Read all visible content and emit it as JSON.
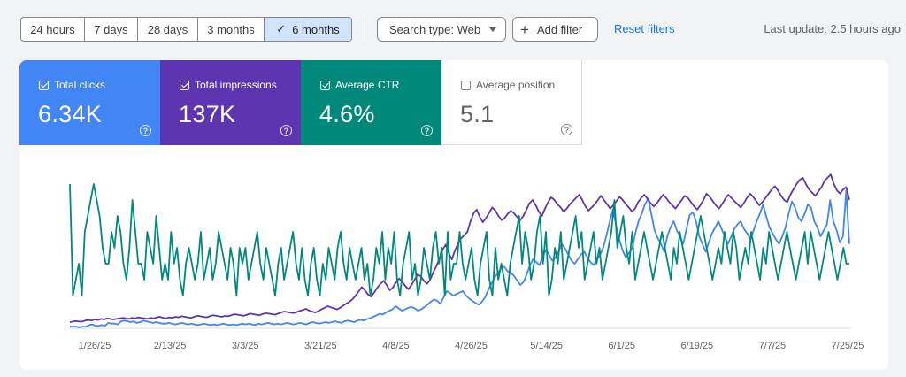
{
  "toolbar": {
    "ranges": [
      {
        "label": "24 hours",
        "active": false
      },
      {
        "label": "7 days",
        "active": false
      },
      {
        "label": "28 days",
        "active": false
      },
      {
        "label": "3 months",
        "active": false
      },
      {
        "label": "6 months",
        "active": true
      }
    ],
    "search_type_label": "Search type: Web",
    "add_filter_label": "Add filter",
    "reset_filters_label": "Reset filters",
    "last_update": "Last update: 2.5 hours ago"
  },
  "metrics": [
    {
      "label": "Total clicks",
      "value": "6.34K",
      "checked": true,
      "color": "#4285f4"
    },
    {
      "label": "Total impressions",
      "value": "137K",
      "checked": true,
      "color": "#5e35b1"
    },
    {
      "label": "Average CTR",
      "value": "4.6%",
      "checked": true,
      "color": "#00897b"
    },
    {
      "label": "Average position",
      "value": "5.1",
      "checked": false,
      "color": "#e8710a"
    }
  ],
  "help_glyph": "?",
  "chart_data": {
    "type": "line",
    "x_start": "2025-01-26",
    "x_end": "2025-07-26",
    "x_tick_labels": [
      "1/26/25",
      "2/13/25",
      "3/3/25",
      "3/21/25",
      "4/8/25",
      "4/26/25",
      "5/14/25",
      "6/1/25",
      "6/19/25",
      "7/7/25",
      "7/25/25"
    ],
    "grid": false,
    "y_axis_labels_shown": false,
    "series": [
      {
        "name": "Total clicks",
        "color": "#4285f4",
        "values": [
          1,
          1,
          1,
          0,
          1,
          1,
          3,
          4,
          2,
          2,
          3,
          2,
          6,
          5,
          5,
          4,
          8,
          9,
          8,
          7,
          8,
          6,
          7,
          9,
          8,
          7,
          6,
          7,
          6,
          5,
          5,
          6,
          5,
          4,
          5,
          6,
          5,
          4,
          5,
          4,
          3,
          4,
          5,
          4,
          3,
          4,
          3,
          4,
          5,
          4,
          3,
          4,
          3,
          4,
          5,
          4,
          5,
          4,
          3,
          5,
          4,
          5,
          6,
          5,
          4,
          5,
          4,
          5,
          6,
          5,
          4,
          5,
          6,
          5,
          4,
          6,
          7,
          6,
          5,
          6,
          7,
          6,
          7,
          8,
          7,
          6,
          8,
          9,
          8,
          7,
          9,
          10,
          9,
          11,
          12,
          14,
          16,
          18,
          17,
          20,
          22,
          24,
          28,
          25,
          22,
          24,
          26,
          27,
          25,
          22,
          24,
          27,
          30,
          34,
          37,
          35,
          31,
          40,
          48,
          45,
          42,
          44,
          46,
          48,
          42,
          38,
          35,
          32,
          30,
          34,
          40,
          50,
          58,
          66,
          72,
          78,
          80,
          74,
          72,
          68,
          62,
          56,
          60,
          70,
          82,
          90,
          86,
          82,
          94,
          102,
          96,
          88,
          92,
          100,
          110,
          104,
          96,
          88,
          84,
          90,
          96,
          100,
          92,
          86,
          82,
          90,
          96,
          106,
          122,
          140,
          156,
          134,
          116,
          102,
          92,
          98,
          104,
          124,
          140,
          150,
          162,
          170,
          150,
          128,
          118,
          110,
          100,
          120,
          132,
          140,
          128,
          120,
          110,
          130,
          148,
          152,
          140,
          120,
          110,
          100,
          112,
          124,
          132,
          140,
          130,
          120,
          110,
          120,
          130,
          136,
          140,
          130,
          124,
          116,
          128,
          140,
          150,
          162,
          146,
          132,
          124,
          116,
          110,
          120,
          132,
          150,
          166,
          158,
          145,
          140,
          150,
          162,
          158,
          140,
          132,
          120,
          128,
          136,
          168,
          140,
          128,
          112,
          120,
          180,
          110
        ],
        "ylim": [
          0,
          210
        ]
      },
      {
        "name": "Total impressions",
        "color": "#5e35b1",
        "values": [
          100,
          101,
          102,
          101,
          101,
          103,
          104,
          103,
          105,
          104,
          106,
          105,
          107,
          106,
          105,
          106,
          107,
          108,
          107,
          106,
          108,
          107,
          109,
          108,
          107,
          106,
          108,
          107,
          109,
          110,
          108,
          107,
          109,
          108,
          110,
          109,
          111,
          110,
          109,
          108,
          110,
          112,
          111,
          110,
          109,
          111,
          113,
          112,
          111,
          110,
          112,
          111,
          113,
          115,
          114,
          113,
          112,
          114,
          116,
          115,
          114,
          113,
          115,
          117,
          116,
          115,
          114,
          116,
          118,
          120,
          119,
          118,
          117,
          119,
          121,
          123,
          125,
          122,
          120,
          118,
          121,
          124,
          127,
          130,
          128,
          126,
          124,
          127,
          131,
          135,
          138,
          143,
          150,
          158,
          166,
          160,
          152,
          148,
          156,
          165,
          172,
          178,
          170,
          160,
          165,
          175,
          182,
          176,
          168,
          162,
          170,
          180,
          190,
          186,
          178,
          172,
          180,
          194,
          205,
          220,
          236,
          246,
          230,
          218,
          235,
          248,
          258,
          264,
          270,
          290,
          305,
          312,
          298,
          288,
          296,
          306,
          316,
          310,
          300,
          292,
          296,
          304,
          310,
          305,
          298,
          292,
          300,
          312,
          324,
          330,
          320,
          308,
          300,
          314,
          326,
          335,
          330,
          322,
          316,
          308,
          314,
          322,
          328,
          334,
          340,
          330,
          318,
          310,
          316,
          322,
          330,
          338,
          330,
          322,
          314,
          320,
          328,
          336,
          330,
          322,
          316,
          308,
          314,
          326,
          334,
          340,
          332,
          324,
          318,
          324,
          332,
          340,
          334,
          326,
          320,
          314,
          322,
          330,
          338,
          334,
          326,
          318,
          312,
          320,
          330,
          342,
          336,
          328,
          320,
          314,
          322,
          332,
          340,
          334,
          328,
          322,
          316,
          324,
          334,
          342,
          336,
          328,
          320,
          326,
          334,
          342,
          350,
          356,
          348,
          338,
          330,
          326,
          340,
          350,
          360,
          368,
          372,
          360,
          350,
          344,
          338,
          346,
          354,
          366,
          372,
          378,
          360,
          348,
          342,
          350,
          354,
          330
        ],
        "ylim": [
          90,
          390
        ]
      },
      {
        "name": "Average CTR",
        "color": "#00897b",
        "values": [
          9,
          2,
          3,
          4,
          2,
          6,
          7,
          8,
          9,
          8,
          7,
          5,
          4,
          4,
          6,
          5,
          7,
          6,
          4,
          3,
          5,
          8,
          6,
          4,
          4,
          3,
          6,
          5,
          4,
          7,
          5,
          3,
          4,
          3,
          6,
          4,
          5,
          3,
          2,
          4,
          5,
          4,
          3,
          4,
          6,
          3,
          4,
          5,
          3,
          4,
          6,
          5,
          4,
          3,
          5,
          4,
          2,
          5,
          4,
          5,
          3,
          4,
          5,
          6,
          4,
          3,
          5,
          4,
          3,
          2,
          4,
          5,
          3,
          4,
          5,
          6,
          4,
          3,
          5,
          3,
          2,
          4,
          5,
          3,
          2,
          4,
          3,
          5,
          4,
          3,
          5,
          6,
          4,
          3,
          5,
          4,
          3,
          4,
          5,
          3,
          4,
          2,
          3,
          5,
          4,
          6,
          3,
          5,
          4,
          6,
          3,
          2,
          4,
          5,
          6,
          3,
          4,
          2,
          3,
          5,
          4,
          3,
          5,
          6,
          4,
          5,
          2,
          6,
          3,
          4,
          4,
          6,
          4,
          3,
          4,
          5,
          3,
          2,
          4,
          5,
          6,
          3,
          2,
          5,
          3,
          4,
          3,
          2,
          4,
          5,
          6,
          7,
          4,
          6,
          5,
          3,
          4,
          6,
          7,
          4,
          6,
          2,
          3,
          5,
          4,
          6,
          3,
          4,
          5,
          6,
          7,
          5,
          6,
          3,
          4,
          5,
          6,
          4,
          5,
          3,
          4,
          5,
          6,
          8,
          5,
          6,
          7,
          5,
          4,
          6,
          3,
          4,
          5,
          6,
          5,
          4,
          3,
          4,
          5,
          6,
          5,
          4,
          3,
          5,
          4,
          6,
          5,
          4,
          3,
          4,
          5,
          6,
          7,
          6,
          5,
          4,
          3,
          4,
          5,
          4,
          6,
          5,
          4,
          6,
          5,
          3,
          4,
          5,
          4,
          6,
          5,
          4,
          3,
          5,
          4,
          6,
          5,
          4,
          3,
          4,
          5,
          6,
          5,
          4,
          3,
          4,
          5,
          6,
          4,
          6,
          5,
          4,
          3,
          4,
          5,
          6,
          5,
          4,
          3,
          4,
          5,
          4,
          4
        ],
        "ylim": [
          0,
          10
        ]
      }
    ]
  }
}
